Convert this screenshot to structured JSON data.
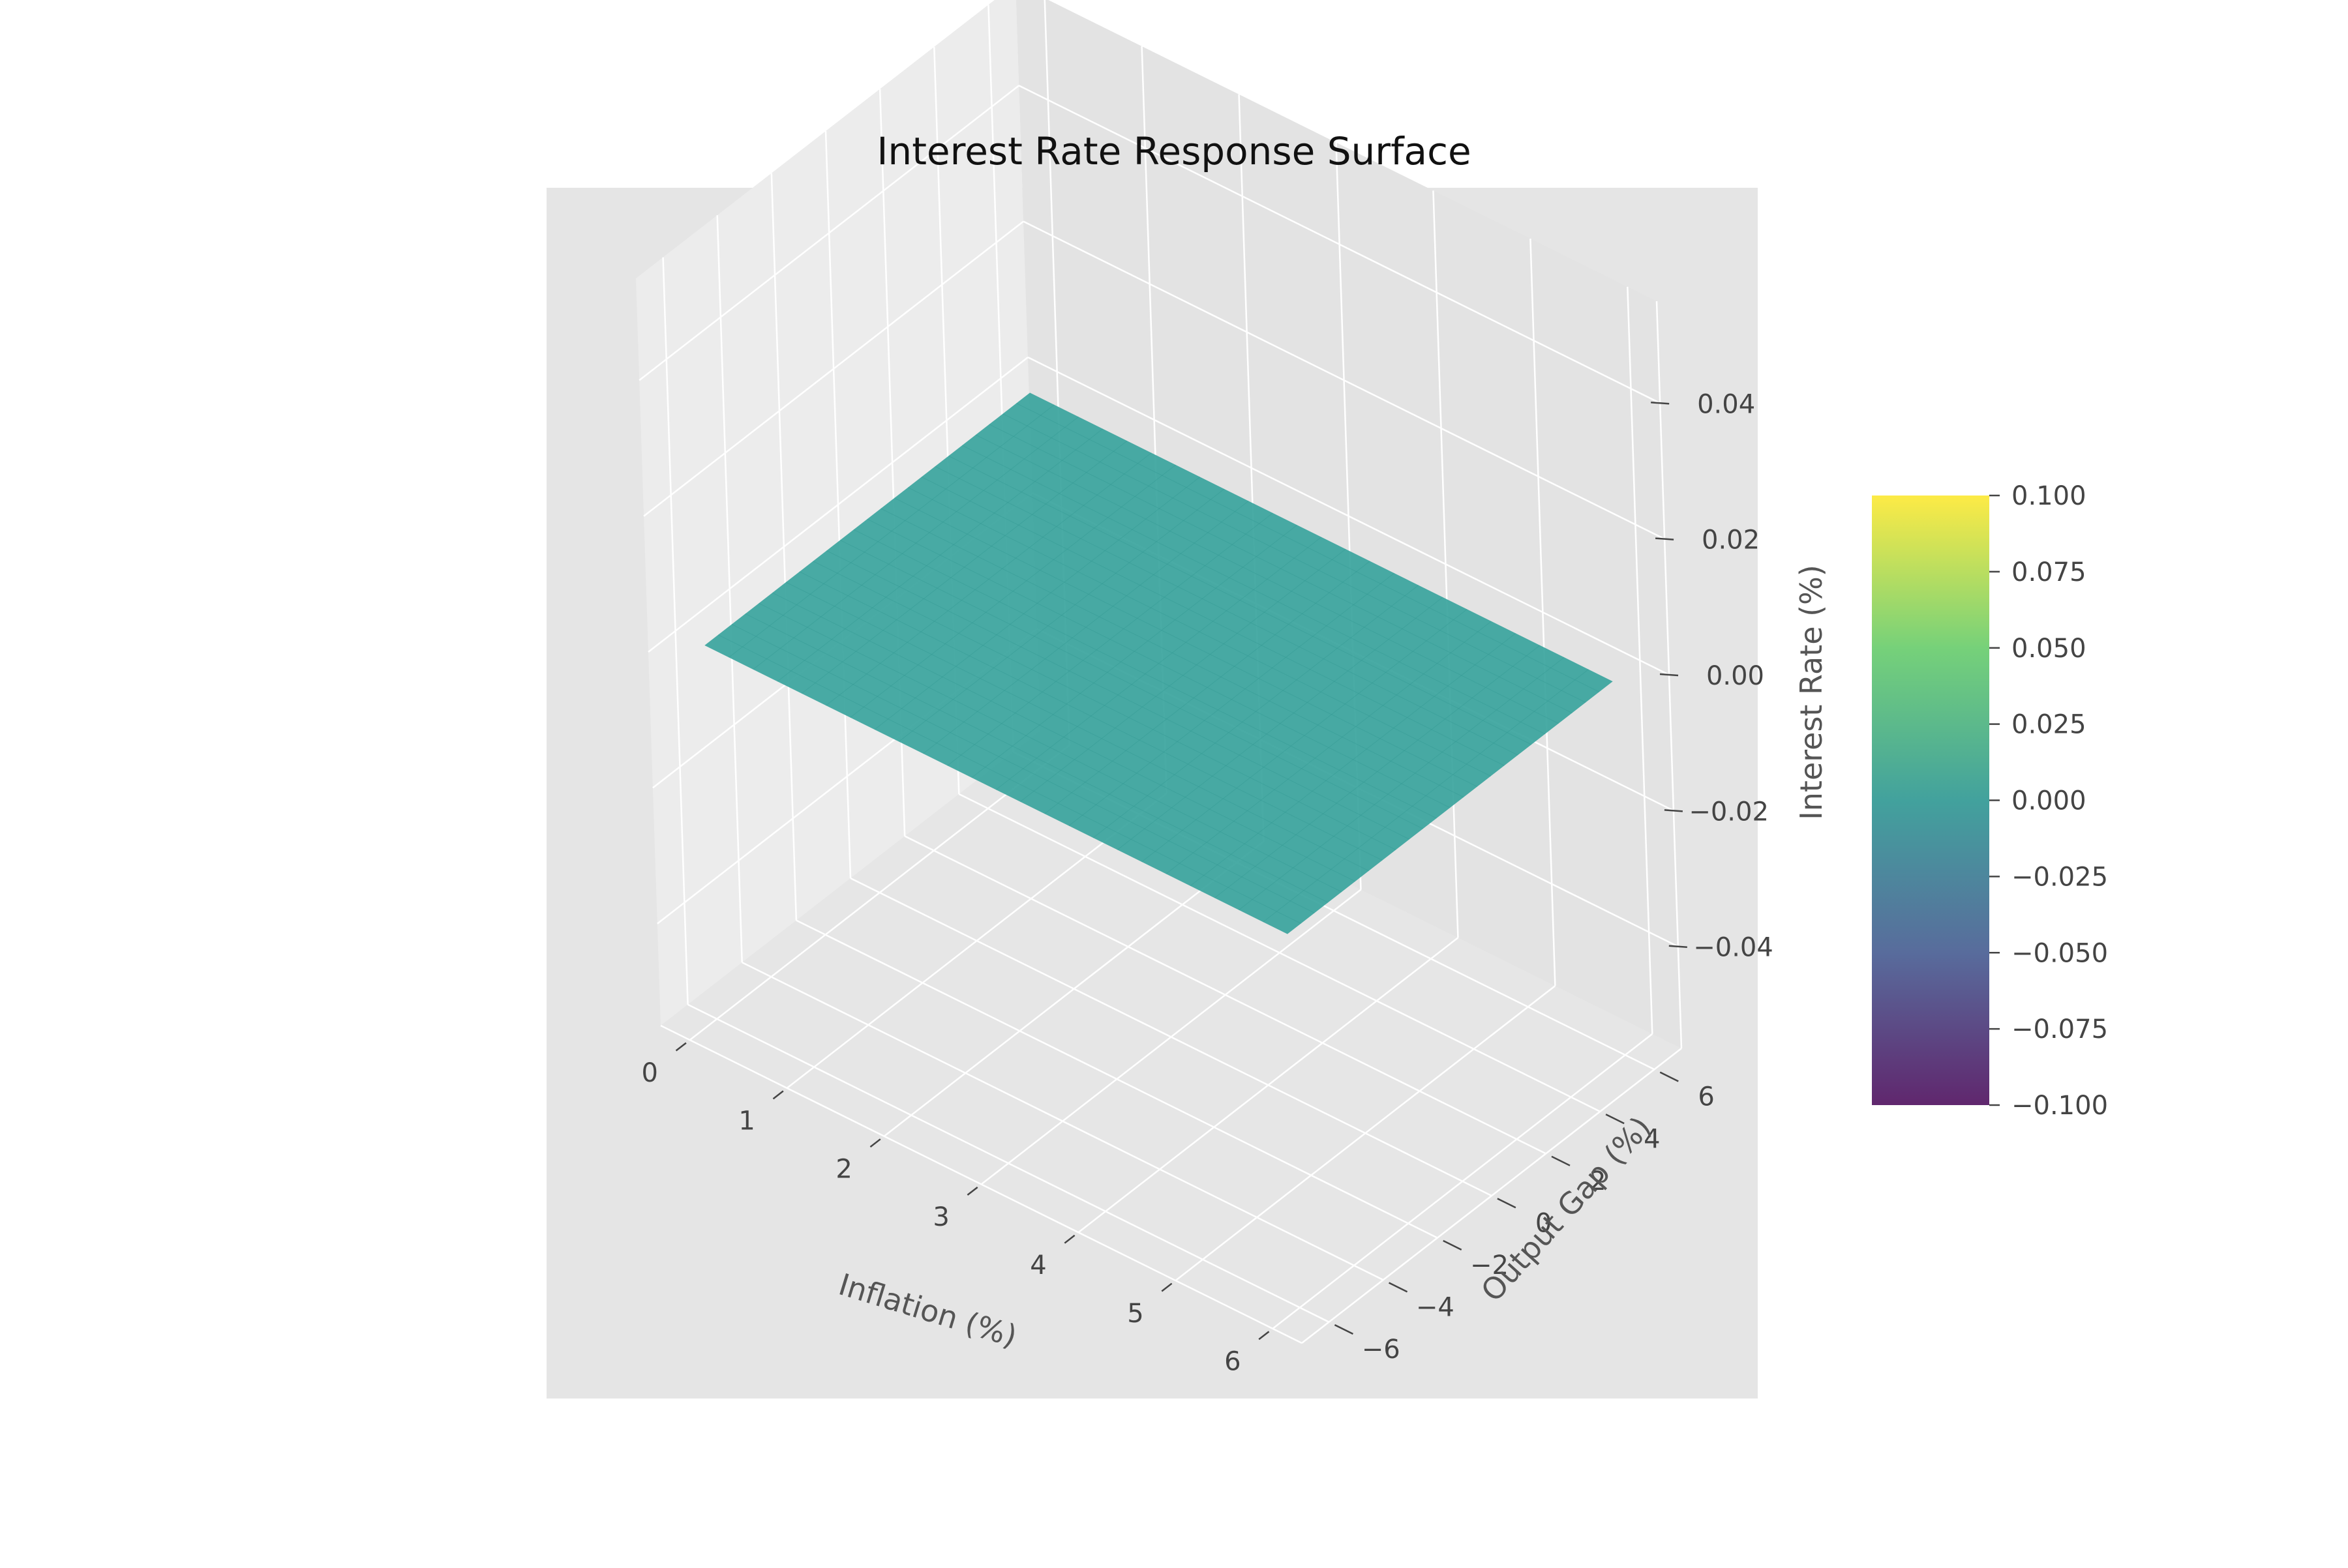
{
  "chart_data": {
    "type": "surface3d",
    "title": "Interest Rate Response Surface",
    "xlabel": "Inflation (%)",
    "ylabel": "Output Gap (%)",
    "zlabel": "Interest Rate (%)",
    "x_ticks": [
      "0",
      "1",
      "2",
      "3",
      "4",
      "5",
      "6"
    ],
    "y_ticks": [
      "−6",
      "−4",
      "−2",
      "0",
      "2",
      "4",
      "6"
    ],
    "z_ticks": [
      "−0.04",
      "−0.02",
      "0.00",
      "0.02",
      "0.04"
    ],
    "xlim": [
      -0.3,
      6.3
    ],
    "ylim": [
      -7,
      7
    ],
    "zlim": [
      -0.055,
      0.055
    ],
    "surface": {
      "x_range": [
        0,
        6
      ],
      "y_range": [
        -6,
        6
      ],
      "z_value": 0.0,
      "color": "#3aa49d"
    },
    "colorbar": {
      "ticks": [
        "0.100",
        "0.075",
        "0.050",
        "0.025",
        "0.000",
        "−0.025",
        "−0.050",
        "−0.075",
        "−0.100"
      ],
      "range": [
        -0.1,
        0.1
      ],
      "colormap": "viridis",
      "stops": [
        "#440154",
        "#3b528b",
        "#21918c",
        "#5ec962",
        "#fde725"
      ]
    },
    "grid": true,
    "pane_color": "#e5e5e5"
  }
}
